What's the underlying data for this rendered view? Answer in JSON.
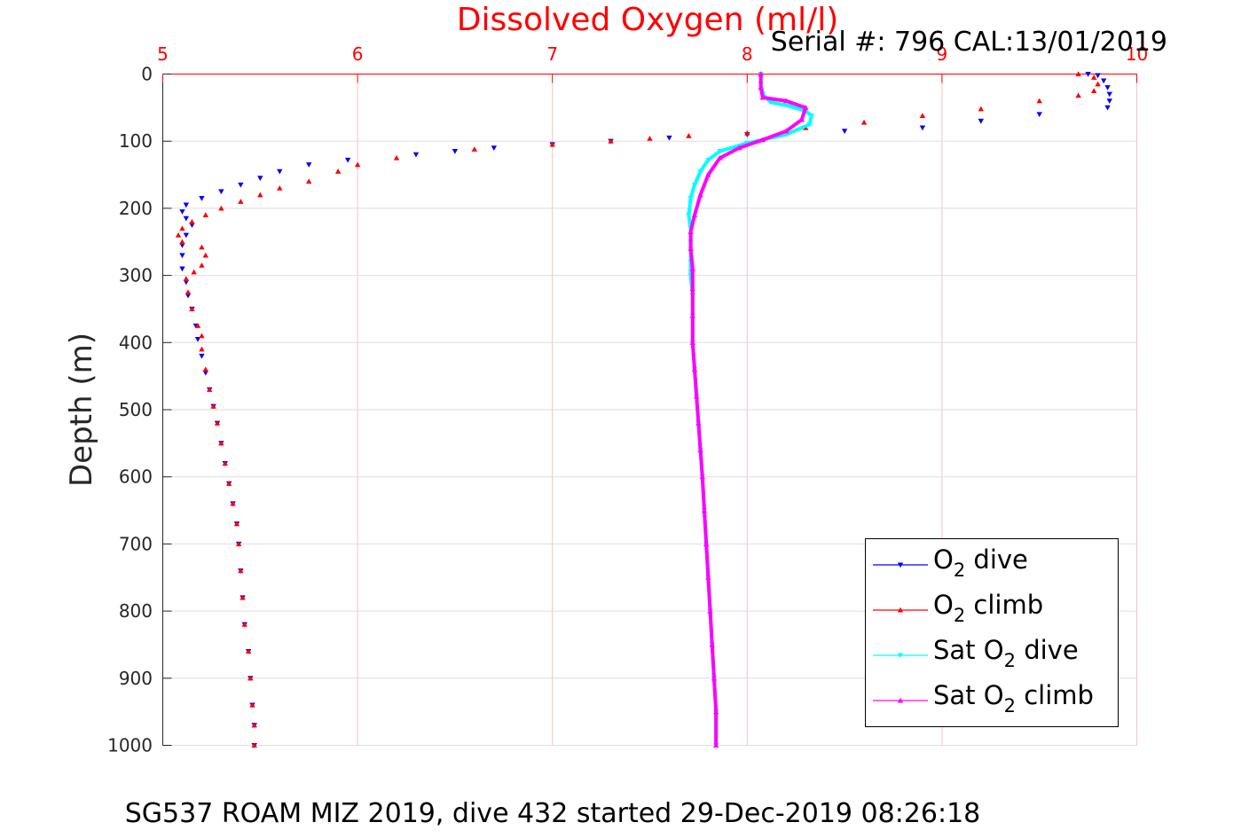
{
  "chart_data": {
    "type": "scatter",
    "title": "Dissolved Oxygen (ml/l)",
    "subtitle": "Serial #: 796  CAL:13/01/2019",
    "caption": "SG537 ROAM MIZ 2019, dive 432 started 29-Dec-2019 08:26:18",
    "xlabel": "Dissolved Oxygen (ml/l)",
    "ylabel": "Depth (m)",
    "xlim": [
      5,
      10
    ],
    "ylim": [
      0,
      1000
    ],
    "y_reversed": true,
    "x_axis_position": "top",
    "grid": true,
    "x_ticks": [
      "5",
      "6",
      "7",
      "8",
      "9",
      "10"
    ],
    "y_ticks": [
      "0",
      "100",
      "200",
      "300",
      "400",
      "500",
      "600",
      "700",
      "800",
      "900",
      "1000"
    ],
    "legend": {
      "position": "bottom-right"
    },
    "series": [
      {
        "name_main": "O",
        "name_sub": "2",
        "name_rest": " dive",
        "color": "#0000ff",
        "marker": "triangle-down",
        "points": [
          [
            9.75,
            0
          ],
          [
            9.8,
            2
          ],
          [
            9.83,
            10
          ],
          [
            9.85,
            20
          ],
          [
            9.86,
            30
          ],
          [
            9.86,
            40
          ],
          [
            9.85,
            50
          ],
          [
            9.5,
            60
          ],
          [
            9.2,
            70
          ],
          [
            8.9,
            80
          ],
          [
            8.5,
            85
          ],
          [
            8.0,
            90
          ],
          [
            7.6,
            95
          ],
          [
            7.3,
            100
          ],
          [
            7.0,
            105
          ],
          [
            6.7,
            110
          ],
          [
            6.5,
            115
          ],
          [
            6.3,
            120
          ],
          [
            5.95,
            128
          ],
          [
            5.75,
            135
          ],
          [
            5.6,
            145
          ],
          [
            5.5,
            155
          ],
          [
            5.4,
            165
          ],
          [
            5.3,
            175
          ],
          [
            5.2,
            185
          ],
          [
            5.12,
            195
          ],
          [
            5.1,
            205
          ],
          [
            5.12,
            215
          ],
          [
            5.15,
            225
          ],
          [
            5.12,
            240
          ],
          [
            5.1,
            255
          ],
          [
            5.1,
            270
          ],
          [
            5.1,
            290
          ],
          [
            5.12,
            310
          ],
          [
            5.13,
            330
          ],
          [
            5.15,
            350
          ],
          [
            5.17,
            375
          ],
          [
            5.18,
            395
          ],
          [
            5.2,
            420
          ],
          [
            5.22,
            445
          ],
          [
            5.24,
            470
          ],
          [
            5.26,
            495
          ],
          [
            5.28,
            520
          ],
          [
            5.3,
            550
          ],
          [
            5.32,
            580
          ],
          [
            5.34,
            610
          ],
          [
            5.36,
            640
          ],
          [
            5.38,
            670
          ],
          [
            5.39,
            700
          ],
          [
            5.4,
            740
          ],
          [
            5.41,
            780
          ],
          [
            5.42,
            820
          ],
          [
            5.44,
            860
          ],
          [
            5.45,
            900
          ],
          [
            5.46,
            940
          ],
          [
            5.47,
            970
          ],
          [
            5.47,
            1000
          ]
        ]
      },
      {
        "name_main": "O",
        "name_sub": "2",
        "name_rest": " climb",
        "color": "#ff0000",
        "marker": "triangle-up",
        "points": [
          [
            5.47,
            1000
          ],
          [
            5.47,
            970
          ],
          [
            5.46,
            940
          ],
          [
            5.45,
            900
          ],
          [
            5.44,
            860
          ],
          [
            5.42,
            820
          ],
          [
            5.41,
            780
          ],
          [
            5.4,
            740
          ],
          [
            5.39,
            700
          ],
          [
            5.38,
            670
          ],
          [
            5.36,
            640
          ],
          [
            5.34,
            610
          ],
          [
            5.32,
            580
          ],
          [
            5.3,
            550
          ],
          [
            5.28,
            520
          ],
          [
            5.26,
            495
          ],
          [
            5.24,
            470
          ],
          [
            5.22,
            440
          ],
          [
            5.2,
            410
          ],
          [
            5.2,
            390
          ],
          [
            5.18,
            375
          ],
          [
            5.15,
            350
          ],
          [
            5.13,
            325
          ],
          [
            5.12,
            305
          ],
          [
            5.16,
            295
          ],
          [
            5.2,
            285
          ],
          [
            5.22,
            270
          ],
          [
            5.2,
            258
          ],
          [
            5.1,
            250
          ],
          [
            5.08,
            240
          ],
          [
            5.1,
            230
          ],
          [
            5.15,
            220
          ],
          [
            5.22,
            210
          ],
          [
            5.3,
            200
          ],
          [
            5.4,
            190
          ],
          [
            5.5,
            180
          ],
          [
            5.6,
            170
          ],
          [
            5.75,
            160
          ],
          [
            5.9,
            145
          ],
          [
            6.0,
            135
          ],
          [
            6.2,
            125
          ],
          [
            6.6,
            112
          ],
          [
            7.0,
            105
          ],
          [
            7.3,
            100
          ],
          [
            7.5,
            96
          ],
          [
            7.7,
            92
          ],
          [
            8.0,
            88
          ],
          [
            8.3,
            80
          ],
          [
            8.6,
            72
          ],
          [
            8.9,
            62
          ],
          [
            9.2,
            52
          ],
          [
            9.5,
            40
          ],
          [
            9.7,
            32
          ],
          [
            9.78,
            25
          ],
          [
            9.8,
            15
          ],
          [
            9.78,
            5
          ],
          [
            9.7,
            0
          ]
        ]
      },
      {
        "name_main": "Sat O",
        "name_sub": "2",
        "name_rest": " dive",
        "color": "#00ffff",
        "marker": "triangle-down",
        "points": [
          [
            8.07,
            0
          ],
          [
            8.07,
            15
          ],
          [
            8.08,
            30
          ],
          [
            8.12,
            42
          ],
          [
            8.22,
            48
          ],
          [
            8.3,
            55
          ],
          [
            8.33,
            62
          ],
          [
            8.32,
            75
          ],
          [
            8.2,
            90
          ],
          [
            8.0,
            103
          ],
          [
            7.86,
            115
          ],
          [
            7.8,
            128
          ],
          [
            7.76,
            145
          ],
          [
            7.73,
            165
          ],
          [
            7.71,
            185
          ],
          [
            7.7,
            210
          ],
          [
            7.71,
            230
          ],
          [
            7.71,
            250
          ],
          [
            7.71,
            280
          ],
          [
            7.71,
            300
          ],
          [
            7.72,
            330
          ],
          [
            7.72,
            360
          ],
          [
            7.72,
            400
          ],
          [
            7.73,
            440
          ],
          [
            7.74,
            480
          ],
          [
            7.75,
            520
          ],
          [
            7.76,
            560
          ],
          [
            7.77,
            600
          ],
          [
            7.78,
            650
          ],
          [
            7.79,
            700
          ],
          [
            7.8,
            750
          ],
          [
            7.81,
            800
          ],
          [
            7.82,
            850
          ],
          [
            7.83,
            900
          ],
          [
            7.84,
            950
          ],
          [
            7.84,
            1000
          ]
        ]
      },
      {
        "name_main": "Sat O",
        "name_sub": "2",
        "name_rest": " climb",
        "color": "#ff00ff",
        "marker": "triangle-up",
        "points": [
          [
            7.84,
            1000
          ],
          [
            7.84,
            950
          ],
          [
            7.83,
            900
          ],
          [
            7.82,
            850
          ],
          [
            7.81,
            800
          ],
          [
            7.8,
            750
          ],
          [
            7.79,
            700
          ],
          [
            7.78,
            650
          ],
          [
            7.77,
            600
          ],
          [
            7.76,
            560
          ],
          [
            7.75,
            520
          ],
          [
            7.74,
            480
          ],
          [
            7.73,
            440
          ],
          [
            7.72,
            400
          ],
          [
            7.72,
            360
          ],
          [
            7.72,
            320
          ],
          [
            7.72,
            290
          ],
          [
            7.71,
            260
          ],
          [
            7.71,
            235
          ],
          [
            7.73,
            210
          ],
          [
            7.76,
            180
          ],
          [
            7.8,
            150
          ],
          [
            7.86,
            125
          ],
          [
            7.96,
            110
          ],
          [
            8.08,
            98
          ],
          [
            8.2,
            85
          ],
          [
            8.28,
            68
          ],
          [
            8.3,
            50
          ],
          [
            8.2,
            40
          ],
          [
            8.08,
            35
          ],
          [
            8.07,
            20
          ],
          [
            8.07,
            0
          ]
        ]
      }
    ]
  }
}
